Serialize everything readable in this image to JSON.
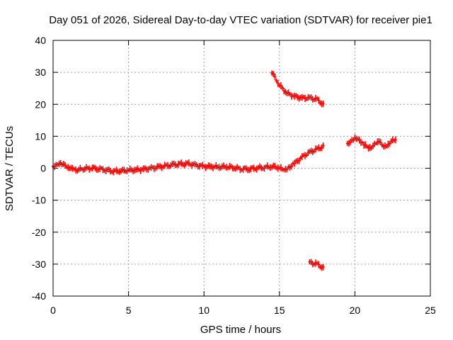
{
  "chart_data": {
    "type": "scatter",
    "title": "Day 051 of 2026, Sidereal Day-to-day VTEC variation (SDTVAR) for receiver pie1",
    "xlabel": "GPS time / hours",
    "ylabel": "SDTVAR / TECUs",
    "xlim": [
      0,
      25
    ],
    "ylim": [
      -40,
      40
    ],
    "xticks": [
      0,
      5,
      10,
      15,
      20,
      25
    ],
    "yticks": [
      -40,
      -30,
      -20,
      -10,
      0,
      10,
      20,
      30,
      40
    ],
    "xtick_labels": [
      "0",
      "5",
      "10",
      "15",
      "20",
      "25"
    ],
    "ytick_labels": [
      "-40",
      "-30",
      "-20",
      "-10",
      "0",
      "10",
      "20",
      "30",
      "40"
    ],
    "grid": true,
    "marker_color": "#ff0000",
    "series": [
      {
        "name": "main",
        "points": [
          [
            0,
            0.5
          ],
          [
            0.3,
            1.5
          ],
          [
            0.6,
            1.2
          ],
          [
            1,
            0.5
          ],
          [
            1.4,
            -0.6
          ],
          [
            2,
            -0.2
          ],
          [
            2.5,
            0.1
          ],
          [
            3,
            -0.1
          ],
          [
            3.5,
            -0.5
          ],
          [
            4,
            -0.9
          ],
          [
            4.5,
            -0.8
          ],
          [
            5,
            -0.6
          ],
          [
            5.5,
            -0.5
          ],
          [
            6,
            -0.3
          ],
          [
            6.5,
            0
          ],
          [
            7,
            0.4
          ],
          [
            7.5,
            0.7
          ],
          [
            8,
            1.1
          ],
          [
            8.5,
            1.3
          ],
          [
            9,
            1.4
          ],
          [
            9.5,
            0.9
          ],
          [
            10,
            0.6
          ],
          [
            10.5,
            0.5
          ],
          [
            11,
            0.4
          ],
          [
            11.5,
            0.5
          ],
          [
            12,
            0.2
          ],
          [
            12.5,
            -0.2
          ],
          [
            13,
            -0.2
          ],
          [
            13.5,
            0.1
          ],
          [
            14,
            0.3
          ],
          [
            14.5,
            0.6
          ],
          [
            15,
            0.2
          ],
          [
            15.3,
            -0.8
          ],
          [
            15.6,
            0.2
          ],
          [
            16,
            1.5
          ],
          [
            16.5,
            3.5
          ],
          [
            17,
            5
          ],
          [
            17.5,
            6
          ],
          [
            18,
            7
          ]
        ]
      },
      {
        "name": "upper",
        "points": [
          [
            14.5,
            30
          ],
          [
            15,
            26
          ],
          [
            15.5,
            23.5
          ],
          [
            16,
            22.5
          ],
          [
            16.5,
            22
          ],
          [
            17,
            22
          ],
          [
            17.5,
            21.5
          ],
          [
            18,
            19.5
          ]
        ]
      },
      {
        "name": "lower",
        "points": [
          [
            17,
            -29.5
          ],
          [
            17.5,
            -30
          ],
          [
            18,
            -31.5
          ]
        ]
      },
      {
        "name": "late",
        "points": [
          [
            19.5,
            7.5
          ],
          [
            19.8,
            9
          ],
          [
            20.1,
            9.5
          ],
          [
            20.4,
            8
          ],
          [
            20.7,
            7
          ],
          [
            21,
            6.5
          ],
          [
            21.4,
            7.5
          ],
          [
            21.6,
            8.5
          ],
          [
            21.9,
            6.5
          ],
          [
            22.3,
            8
          ],
          [
            22.8,
            9.5
          ]
        ]
      }
    ]
  }
}
